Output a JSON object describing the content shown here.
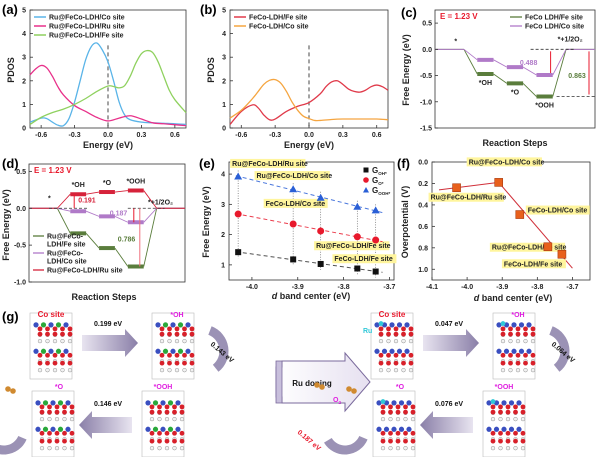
{
  "figure": {
    "panel_labels": [
      "(a)",
      "(b)",
      "(c)",
      "(d)",
      "(e)",
      "(f)",
      "(g)"
    ]
  },
  "chart_data": [
    {
      "id": "a",
      "type": "line",
      "xlabel": "Energy (eV)",
      "ylabel": "PDOS",
      "xlim": [
        -0.7,
        0.7
      ],
      "ylim": [
        0,
        5
      ],
      "xticks": [
        "-0.6",
        "-0.3",
        "0.0",
        "0.3",
        "0.6"
      ],
      "yticks": [
        "0",
        "1",
        "2",
        "3",
        "4",
        "5"
      ],
      "legend_position": "top-left",
      "fermi_line_x": 0.0,
      "series": [
        {
          "name": "Ru@FeCo-LDH/Co site",
          "color": "#5ab4e8",
          "x": [
            -0.7,
            -0.6,
            -0.55,
            -0.5,
            -0.45,
            -0.4,
            -0.35,
            -0.3,
            -0.25,
            -0.2,
            -0.15,
            -0.1,
            -0.05,
            0.0,
            0.05,
            0.1,
            0.15,
            0.2,
            0.3,
            0.4,
            0.5,
            0.6,
            0.7
          ],
          "y": [
            0.25,
            0.42,
            0.4,
            0.25,
            0.12,
            0.1,
            0.4,
            1.1,
            2.0,
            2.9,
            3.45,
            3.6,
            3.3,
            2.8,
            2.0,
            1.1,
            0.55,
            0.35,
            0.25,
            0.22,
            0.2,
            0.18,
            0.15
          ]
        },
        {
          "name": "Ru@FeCo-LDH/Ru site",
          "color": "#e8318a",
          "x": [
            -0.7,
            -0.65,
            -0.6,
            -0.55,
            -0.5,
            -0.45,
            -0.4,
            -0.3,
            -0.2,
            -0.1,
            0.0,
            0.1,
            0.2,
            0.3,
            0.4,
            0.5,
            0.6,
            0.7
          ],
          "y": [
            2.25,
            2.5,
            2.65,
            2.55,
            2.2,
            1.75,
            1.4,
            0.95,
            0.7,
            0.45,
            0.3,
            0.42,
            0.52,
            0.38,
            0.22,
            0.18,
            0.14,
            0.1
          ]
        },
        {
          "name": "Ru@FeCo-LDH/Fe site",
          "color": "#8fd15f",
          "x": [
            -0.7,
            -0.6,
            -0.5,
            -0.4,
            -0.3,
            -0.2,
            -0.1,
            0.0,
            0.05,
            0.1,
            0.15,
            0.2,
            0.25,
            0.3,
            0.35,
            0.4,
            0.45,
            0.5,
            0.55,
            0.6,
            0.7
          ],
          "y": [
            0.15,
            0.45,
            0.65,
            0.8,
            1.0,
            1.25,
            1.55,
            1.78,
            1.76,
            1.7,
            1.8,
            2.2,
            2.75,
            3.15,
            3.28,
            3.2,
            2.8,
            2.2,
            1.6,
            1.2,
            0.65
          ]
        }
      ]
    },
    {
      "id": "b",
      "type": "line",
      "xlabel": "Energy (eV)",
      "ylabel": "PDOS",
      "xlim": [
        -0.7,
        0.7
      ],
      "ylim": [
        0,
        5
      ],
      "xticks": [
        "-0.6",
        "-0.3",
        "0.0",
        "0.3",
        "0.6"
      ],
      "yticks": [
        "0",
        "1",
        "2",
        "3",
        "4",
        "5"
      ],
      "legend_position": "top-left",
      "fermi_line_x": 0.0,
      "series": [
        {
          "name": "FeCo-LDH/Fe site",
          "color": "#e03a4a",
          "x": [
            -0.7,
            -0.6,
            -0.5,
            -0.45,
            -0.4,
            -0.35,
            -0.3,
            -0.2,
            -0.1,
            0.0,
            0.1,
            0.15,
            0.2,
            0.25,
            0.3,
            0.35,
            0.4,
            0.45,
            0.5,
            0.55,
            0.6,
            0.65,
            0.7
          ],
          "y": [
            0.15,
            0.7,
            0.98,
            0.85,
            0.55,
            0.35,
            0.38,
            0.7,
            0.92,
            1.08,
            1.45,
            1.75,
            1.95,
            2.0,
            1.85,
            1.65,
            1.55,
            1.52,
            1.6,
            1.75,
            1.82,
            1.75,
            1.6
          ]
        },
        {
          "name": "FeCo-LDH/Co site",
          "color": "#f5a540",
          "x": [
            -0.7,
            -0.6,
            -0.5,
            -0.45,
            -0.4,
            -0.35,
            -0.3,
            -0.25,
            -0.2,
            -0.15,
            -0.1,
            -0.05,
            0.0,
            0.05,
            0.1,
            0.2,
            0.3,
            0.4,
            0.5,
            0.6,
            0.7
          ],
          "y": [
            0.42,
            0.75,
            1.25,
            1.55,
            1.85,
            2.02,
            2.05,
            1.9,
            1.55,
            1.1,
            0.75,
            0.5,
            0.4,
            0.32,
            0.32,
            0.36,
            0.38,
            0.38,
            0.38,
            0.38,
            0.35
          ]
        }
      ]
    },
    {
      "id": "c",
      "type": "line",
      "subtitle": "E = 1.23 V",
      "xlabel": "Reaction Steps",
      "ylabel": "Free Energy (eV)",
      "ylim": [
        -1.5,
        0.75
      ],
      "yticks": [
        "-1.5",
        "-1.0",
        "-0.5",
        "0.0",
        "0.5"
      ],
      "legend_position": "top-right",
      "steps": [
        "*",
        "*OH",
        "*O",
        "*OOH",
        "*+1/2O2"
      ],
      "series": [
        {
          "name": "FeCo LDH/Fe site",
          "color": "#5a7d3c",
          "values": [
            0.0,
            -0.47,
            -0.65,
            -0.9,
            0.0
          ]
        },
        {
          "name": "FeCo LDH/Co site",
          "color": "#b07ac8",
          "values": [
            0.0,
            -0.2,
            -0.34,
            -0.49,
            0.0
          ]
        }
      ],
      "annotations": [
        {
          "text": "0.488",
          "color": "#b07ac8"
        },
        {
          "text": "0.863",
          "color": "#5a7d3c"
        }
      ]
    },
    {
      "id": "d",
      "type": "line",
      "subtitle": "E = 1.23 V",
      "xlabel": "Reaction Steps",
      "ylabel": "Free Energy (eV)",
      "ylim": [
        -1.0,
        0.6
      ],
      "yticks": [
        "-1.0",
        "-0.5",
        "0.0",
        "0.5"
      ],
      "legend_position": "bottom-left",
      "steps": [
        "*",
        "*OH",
        "*O",
        "*OOH",
        "*+1/2O2"
      ],
      "series": [
        {
          "name": "Ru@FeCo-LDH/Fe site",
          "legend_lines": [
            "Ru@FeCo-",
            "LDH/Fe site"
          ],
          "color": "#5a7d3c",
          "values": [
            0.0,
            -0.34,
            -0.54,
            -0.79,
            0.0
          ]
        },
        {
          "name": "Ru@FeCo-LDH/Co site",
          "legend_lines": [
            "Ru@FeCo-",
            "LDH/Co site"
          ],
          "color": "#b07ac8",
          "values": [
            0.0,
            -0.04,
            -0.11,
            -0.19,
            0.0
          ]
        },
        {
          "name": "Ru@FeCo-LDH/Ru site",
          "legend_lines": [
            "Ru@FeCo-LDH/Ru site"
          ],
          "color": "#d6223a",
          "values": [
            0.0,
            0.19,
            0.22,
            0.24,
            0.0
          ]
        }
      ],
      "annotations": [
        {
          "text": "0.191",
          "color": "#d6223a"
        },
        {
          "text": "0.187",
          "color": "#b07ac8"
        },
        {
          "text": "0.786",
          "color": "#5a7d3c"
        }
      ]
    },
    {
      "id": "e",
      "type": "scatter",
      "xlabel": "d band center (eV)",
      "xlabel_italic": "d",
      "xlabel_rest": " band center (eV)",
      "ylabel": "Free Energy (eV)",
      "xlim": [
        -4.05,
        -3.69
      ],
      "ylim": [
        0.5,
        4.4
      ],
      "xticks": [
        "-4.0",
        "-3.9",
        "-3.8",
        "-3.7"
      ],
      "yticks": [
        "1",
        "2",
        "3",
        "4"
      ],
      "legend_position": "top-right",
      "x": [
        -4.03,
        -3.91,
        -3.85,
        -3.77,
        -3.73
      ],
      "site_labels": [
        "Ru@FeCo-LDH/Ru site",
        "Ru@FeCo-LDH/Co site",
        "FeCo-LDH/Co site",
        "Ru@FeCo-LDH/Fe site",
        "FeCo-LDH/Fe site"
      ],
      "series": [
        {
          "name": "G_OH*",
          "base": "G",
          "sub": "OH*",
          "color": "#111111",
          "marker": "square",
          "values": [
            1.42,
            1.18,
            1.03,
            0.88,
            0.78
          ]
        },
        {
          "name": "G_O*",
          "base": "G",
          "sub": "O*",
          "color": "#e8192c",
          "marker": "circle",
          "values": [
            2.68,
            2.35,
            2.12,
            1.93,
            1.82
          ]
        },
        {
          "name": "G_OOH*",
          "base": "G",
          "sub": "OOH*",
          "color": "#2a5fd6",
          "marker": "triangle",
          "values": [
            3.92,
            3.5,
            3.22,
            2.92,
            2.8
          ]
        }
      ]
    },
    {
      "id": "f",
      "type": "scatter",
      "xlabel": "d band center (eV)",
      "xlabel_italic": "d",
      "xlabel_rest": " band center (eV)",
      "ylabel": "Overpotential (V)",
      "xlim": [
        -4.1,
        -3.65
      ],
      "ylim": [
        1.1,
        0.0
      ],
      "xticks": [
        "-4.1",
        "-4.0",
        "-3.9",
        "-3.8",
        "-3.7"
      ],
      "yticks": [
        "0.0",
        "0.2",
        "0.4",
        "0.6",
        "0.8",
        "1.0"
      ],
      "y_inverted": true,
      "color": "#e8601c",
      "points": [
        {
          "label": "Ru@FeCo-LDH/Ru site",
          "x": -4.03,
          "y": 0.24
        },
        {
          "label": "Ru@FeCo-LDH/Co site",
          "x": -3.91,
          "y": 0.19
        },
        {
          "label": "FeCo-LDH/Co site",
          "x": -3.85,
          "y": 0.49
        },
        {
          "label": "Ru@FeCo-LDH/Fe site",
          "x": -3.77,
          "y": 0.79
        },
        {
          "label": "FeCo-LDH/Fe site",
          "x": -3.73,
          "y": 0.86
        }
      ],
      "fit_lines": [
        {
          "x": [
            -4.08,
            -3.91
          ],
          "y": [
            0.26,
            0.19
          ]
        },
        {
          "x": [
            -3.91,
            -3.7
          ],
          "y": [
            0.19,
            0.99
          ]
        }
      ]
    }
  ],
  "panel_g": {
    "left_cycle": {
      "site_label": "Co site",
      "intermediates": [
        "*OH",
        "*OOH",
        "*O"
      ],
      "o2_label": "O2",
      "steps": [
        {
          "energy": "0.199 eV",
          "color": "#111111"
        },
        {
          "energy": "0.143 eV",
          "color": "#111111"
        },
        {
          "energy": "0.146 eV",
          "color": "#111111"
        },
        {
          "energy": "0.488 eV",
          "color": "#e8192c"
        }
      ]
    },
    "center_arrow_label": "Ru doping",
    "right_cycle": {
      "site_label": "Co site",
      "dopant_label": "Ru",
      "intermediates": [
        "*OH",
        "*OOH",
        "*O"
      ],
      "o2_label": "O2",
      "steps": [
        {
          "energy": "0.047 eV",
          "color": "#111111"
        },
        {
          "energy": "0.064 eV",
          "color": "#111111"
        },
        {
          "energy": "0.076 eV",
          "color": "#111111"
        },
        {
          "energy": "0.187 eV",
          "color": "#e8192c"
        }
      ]
    }
  }
}
